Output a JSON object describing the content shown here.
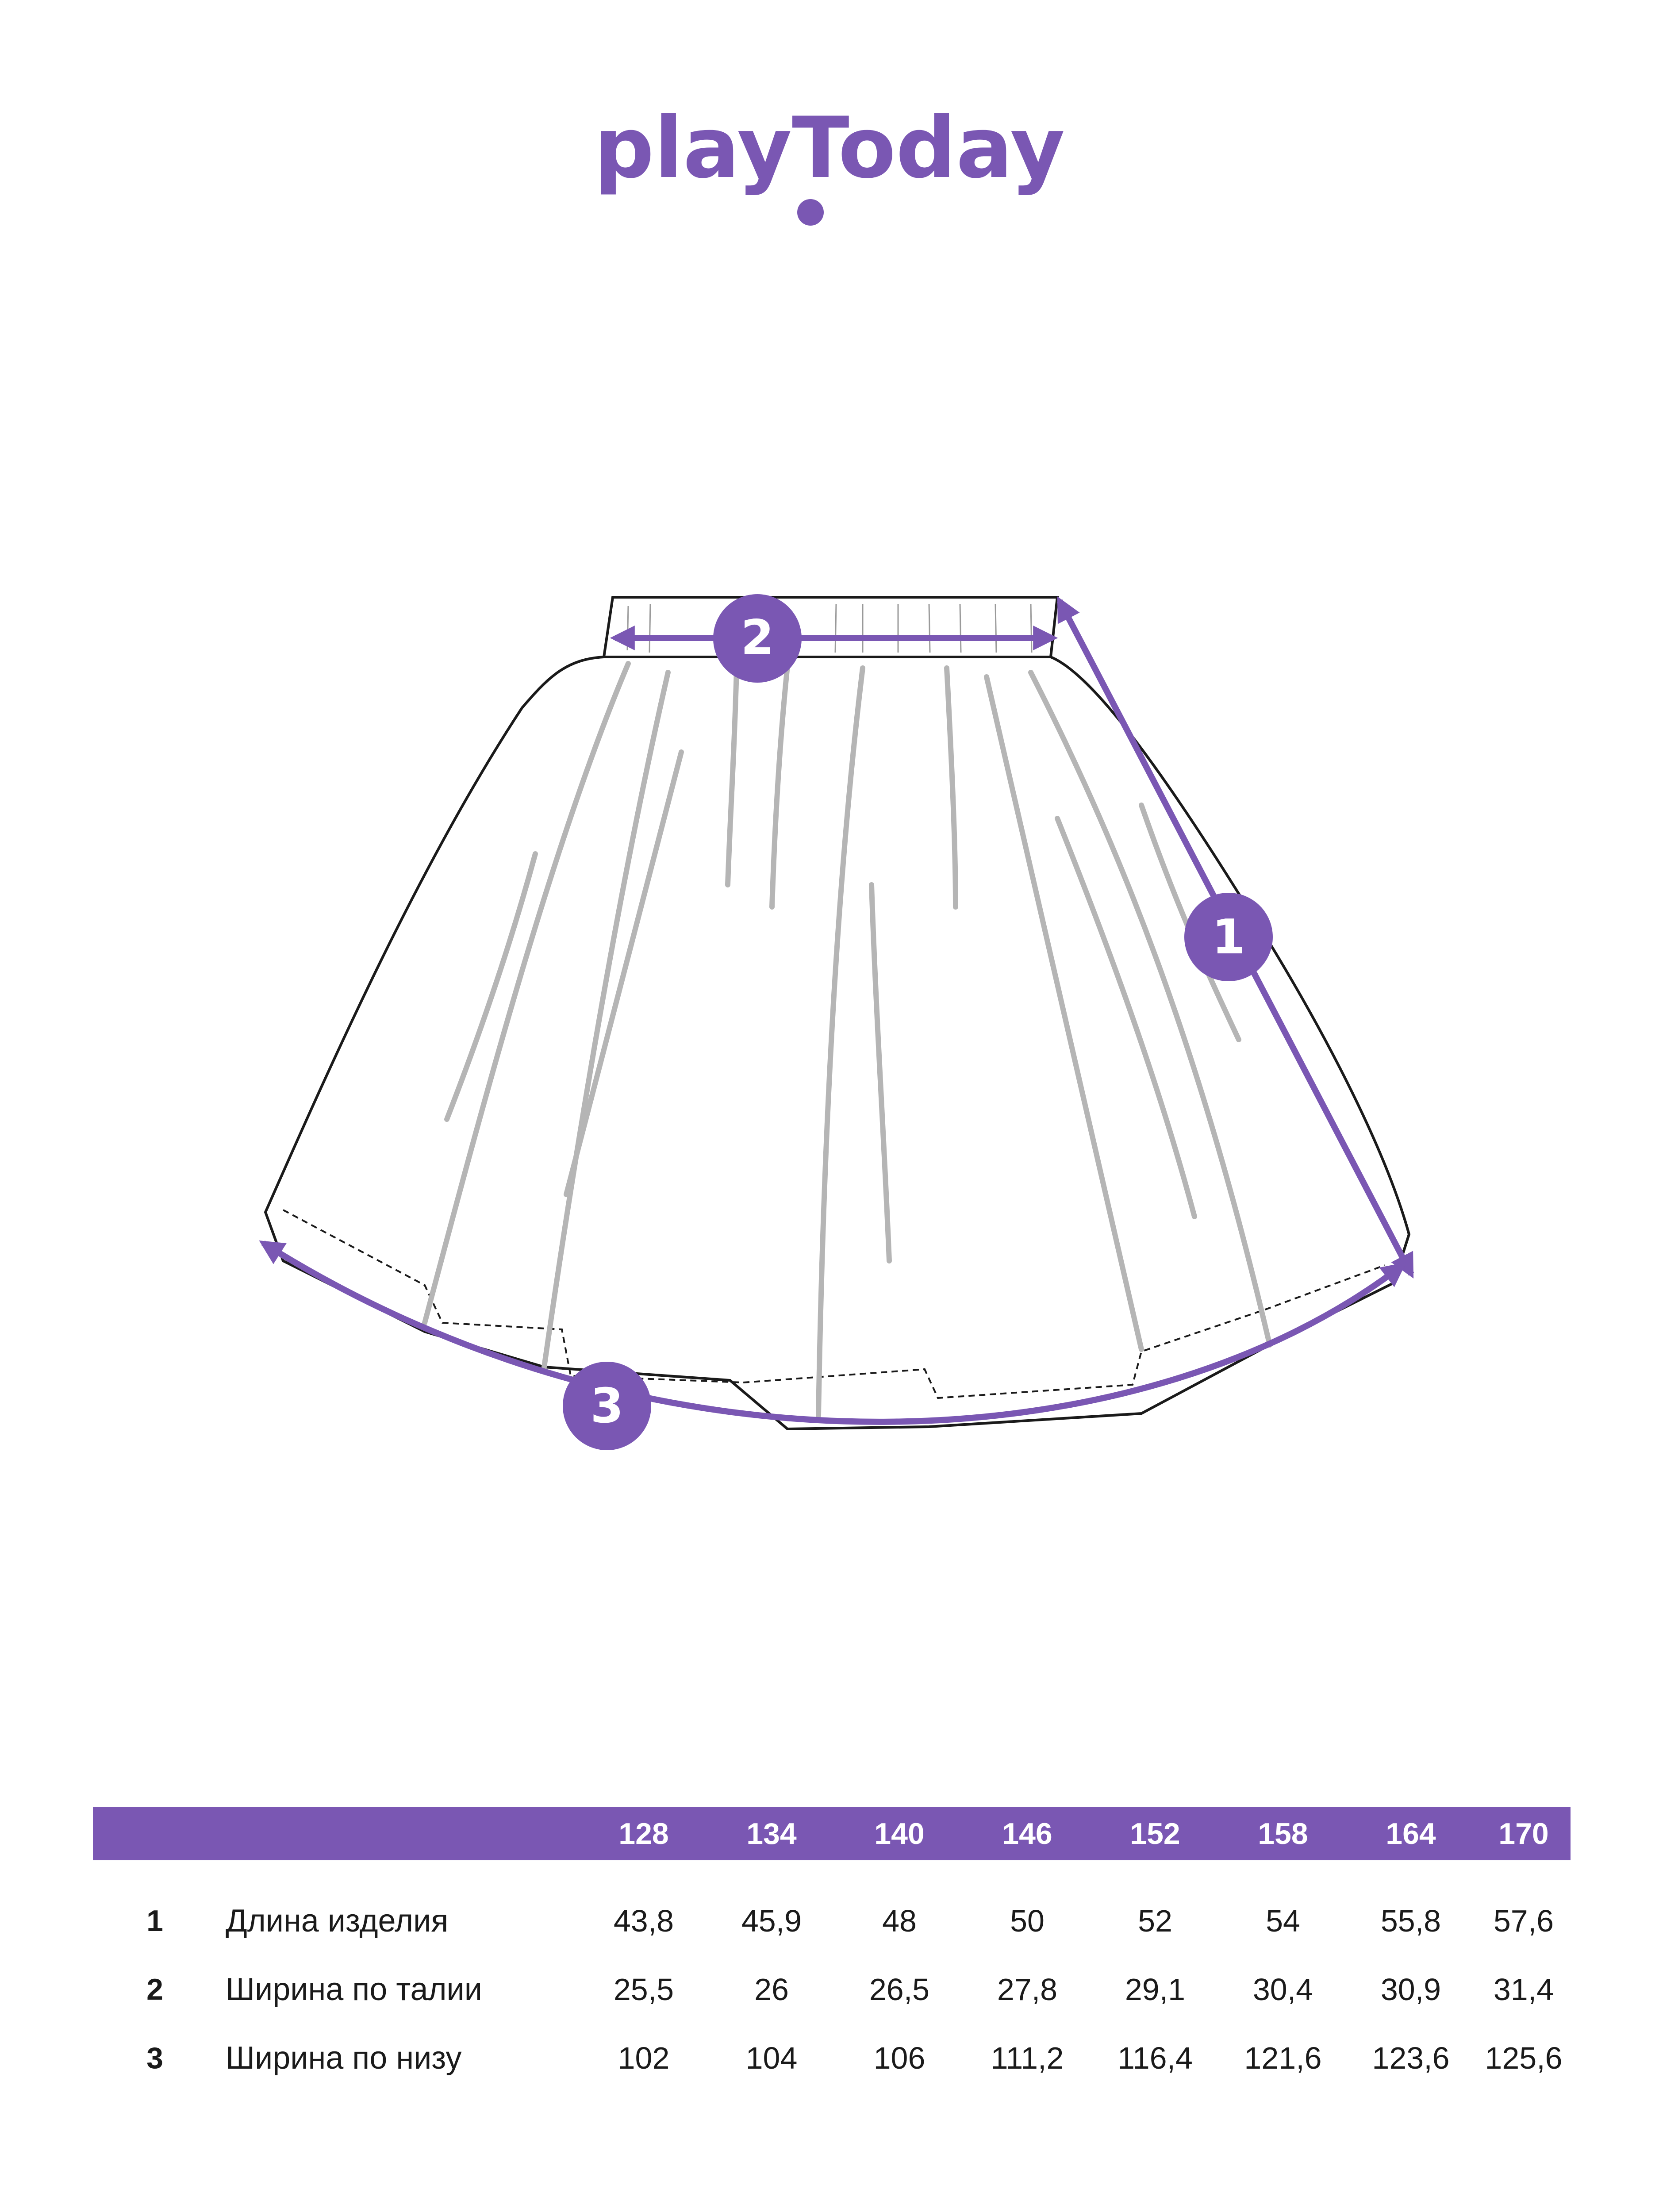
{
  "brand": {
    "logo_text": "playToday",
    "accent_color": "#7a57b3"
  },
  "markers": {
    "length": "1",
    "waist": "2",
    "hem": "3"
  },
  "size_table": {
    "sizes": [
      "128",
      "134",
      "140",
      "146",
      "152",
      "158",
      "164",
      "170"
    ],
    "rows": [
      {
        "num": "1",
        "label": "Длина изделия",
        "values": [
          "43,8",
          "45,9",
          "48",
          "50",
          "52",
          "54",
          "55,8",
          "57,6"
        ]
      },
      {
        "num": "2",
        "label": "Ширина по талии",
        "values": [
          "25,5",
          "26",
          "26,5",
          "27,8",
          "29,1",
          "30,4",
          "30,9",
          "31,4"
        ]
      },
      {
        "num": "3",
        "label": "Ширина по низу",
        "values": [
          "102",
          "104",
          "106",
          "111,2",
          "116,4",
          "121,6",
          "123,6",
          "125,6"
        ]
      }
    ]
  }
}
